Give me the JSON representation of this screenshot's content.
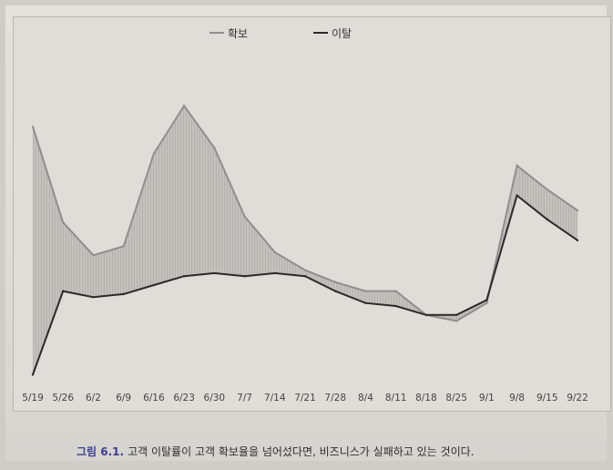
{
  "chart_data": {
    "type": "area",
    "categories": [
      "5/19",
      "5/26",
      "6/2",
      "6/9",
      "6/16",
      "6/23",
      "6/30",
      "7/7",
      "7/14",
      "7/21",
      "7/28",
      "8/4",
      "8/11",
      "8/18",
      "8/25",
      "9/1",
      "9/8",
      "9/15",
      "9/22"
    ],
    "series": [
      {
        "name": "확보",
        "color": "#8f8f8f",
        "values": [
          0.85,
          0.53,
          0.42,
          0.45,
          0.76,
          0.92,
          0.78,
          0.55,
          0.43,
          0.37,
          0.33,
          0.3,
          0.3,
          0.22,
          0.2,
          0.26,
          0.72,
          0.64,
          0.57
        ]
      },
      {
        "name": "이탈",
        "color": "#2a2a2a",
        "values": [
          0.02,
          0.3,
          0.28,
          0.29,
          0.32,
          0.35,
          0.36,
          0.35,
          0.36,
          0.35,
          0.3,
          0.26,
          0.25,
          0.22,
          0.22,
          0.27,
          0.62,
          0.54,
          0.47
        ]
      }
    ],
    "fill_between": true,
    "legend_position": "top-center",
    "grid": false
  },
  "caption": {
    "figure_label": "그림 6.1.",
    "text": "고객 이탈률이 고객 확보율을 넘어섰다면, 비즈니스가 실패하고 있는 것이다."
  }
}
